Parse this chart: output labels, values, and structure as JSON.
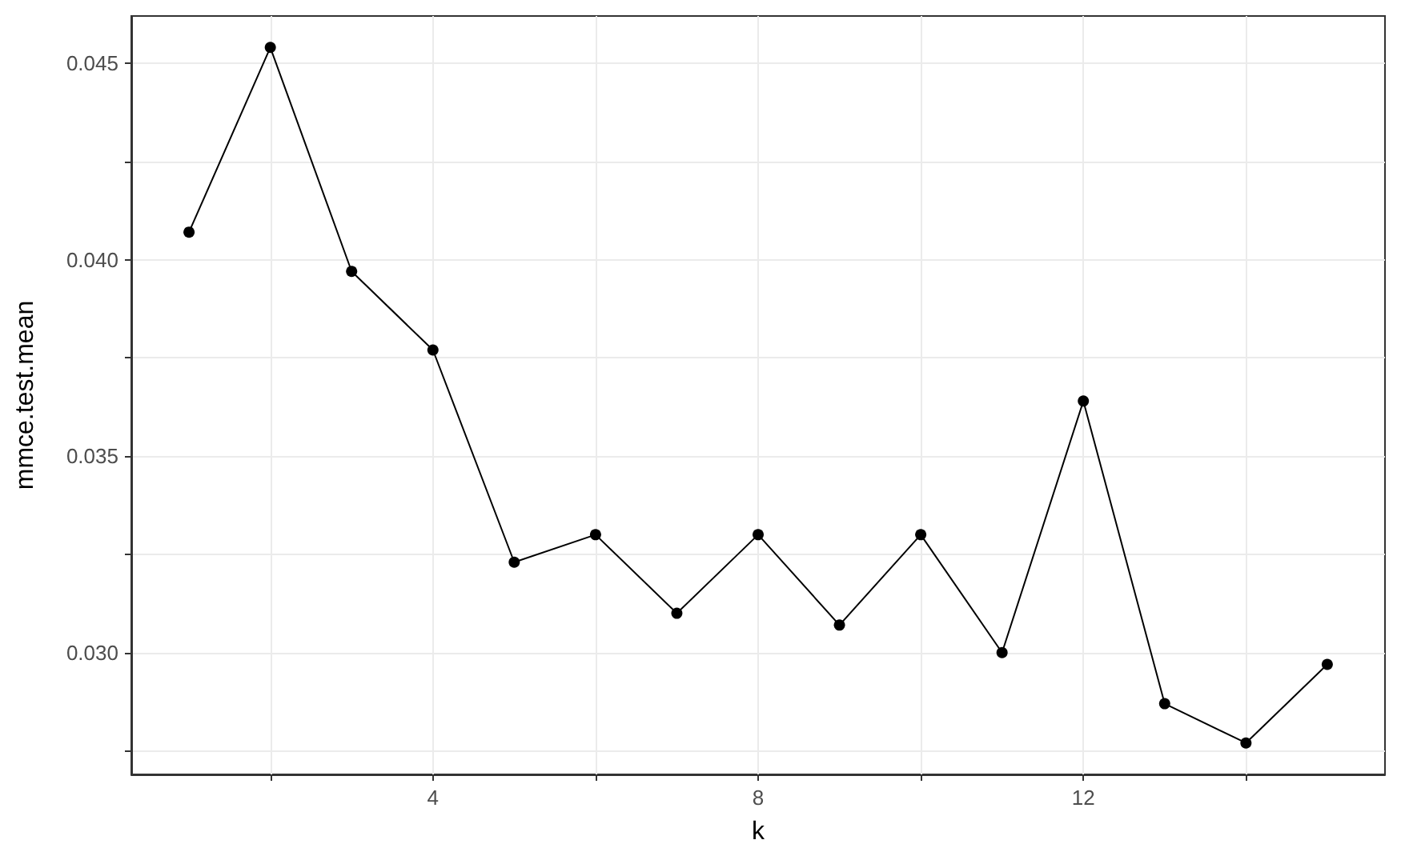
{
  "chart_data": {
    "type": "line",
    "xlabel": "k",
    "ylabel": "mmce.test.mean",
    "x": [
      1,
      2,
      3,
      4,
      5,
      6,
      7,
      8,
      9,
      10,
      11,
      12,
      13,
      14,
      15
    ],
    "series": [
      {
        "color": "#000000",
        "values": [
          0.0407,
          0.0454,
          0.0397,
          0.0377,
          0.0323,
          0.033,
          0.031,
          0.033,
          0.0307,
          0.033,
          0.03,
          0.0364,
          0.0287,
          0.0277,
          0.0297
        ]
      }
    ],
    "xlim": [
      0.29,
      15.71
    ],
    "ylim": [
      0.0269,
      0.0462
    ],
    "xticks": [
      {
        "value": 2,
        "label": null
      },
      {
        "value": 4,
        "label": "4"
      },
      {
        "value": 6,
        "label": null
      },
      {
        "value": 8,
        "label": "8"
      },
      {
        "value": 10,
        "label": null
      },
      {
        "value": 12,
        "label": "12"
      },
      {
        "value": 14,
        "label": null
      }
    ],
    "yticks": [
      {
        "value": 0.0275,
        "label": null
      },
      {
        "value": 0.03,
        "label": "0.030"
      },
      {
        "value": 0.0325,
        "label": null
      },
      {
        "value": 0.035,
        "label": "0.035"
      },
      {
        "value": 0.0375,
        "label": null
      },
      {
        "value": 0.04,
        "label": "0.040"
      },
      {
        "value": 0.0425,
        "label": null
      },
      {
        "value": 0.045,
        "label": "0.045"
      }
    ],
    "grid": true,
    "marker": "circle",
    "line_style": "solid"
  }
}
